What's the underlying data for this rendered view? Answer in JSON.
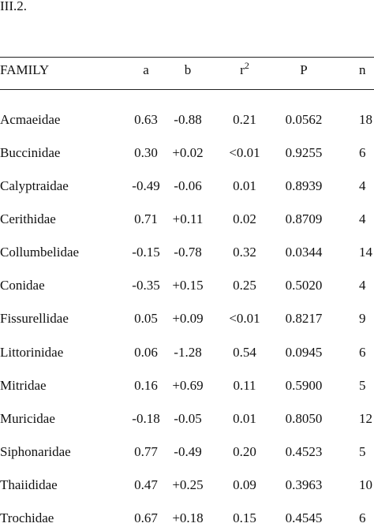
{
  "heading": "III.2.",
  "table": {
    "headers": [
      "FAMILY",
      "a",
      "b",
      {
        "text": "r",
        "sup": "2"
      },
      "P",
      "n"
    ],
    "rows": [
      [
        "Acmaeidae",
        "0.63",
        "-0.88",
        "0.21",
        "0.0562",
        "18"
      ],
      [
        "Buccinidae",
        "0.30",
        "+0.02",
        "<0.01",
        "0.9255",
        "6"
      ],
      [
        "Calyptraidae",
        "-0.49",
        "-0.06",
        "0.01",
        "0.8939",
        "4"
      ],
      [
        "Cerithidae",
        "0.71",
        "+0.11",
        "0.02",
        "0.8709",
        "4"
      ],
      [
        "Collumbelidae",
        "-0.15",
        "-0.78",
        "0.32",
        "0.0344",
        "14"
      ],
      [
        "Conidae",
        "-0.35",
        "+0.15",
        "0.25",
        "0.5020",
        "4"
      ],
      [
        "Fissurellidae",
        "0.05",
        "+0.09",
        "<0.01",
        "0.8217",
        "9"
      ],
      [
        "Littorinidae",
        "0.06",
        "-1.28",
        "0.54",
        "0.0945",
        "6"
      ],
      [
        "Mitridae",
        "0.16",
        "+0.69",
        "0.11",
        "0.5900",
        "5"
      ],
      [
        "Muricidae",
        "-0.18",
        "-0.05",
        "0.01",
        "0.8050",
        "12"
      ],
      [
        "Siphonaridae",
        "0.77",
        "-0.49",
        "0.20",
        "0.4523",
        "5"
      ],
      [
        "Thaiididae",
        "0.47",
        "+0.25",
        "0.09",
        "0.3963",
        "10"
      ],
      [
        "Trochidae",
        "0.67",
        "+0.18",
        "0.15",
        "0.4545",
        "6"
      ]
    ]
  }
}
